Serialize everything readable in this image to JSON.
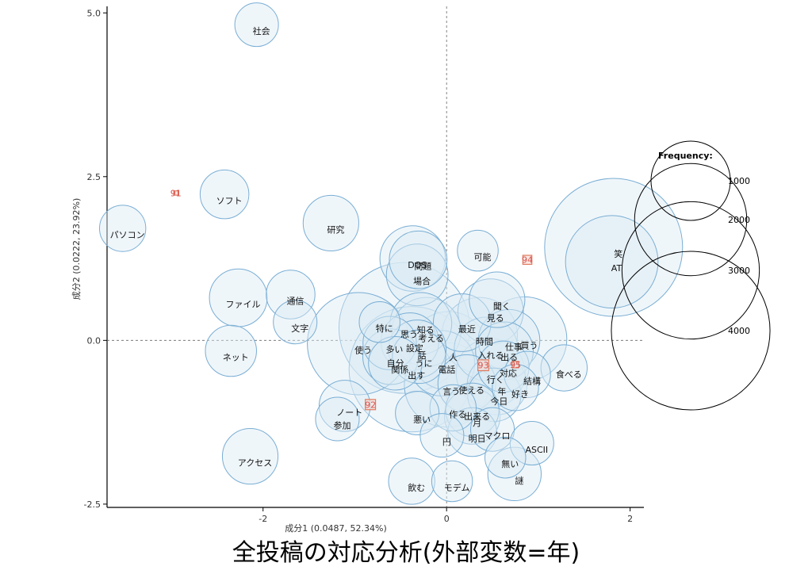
{
  "chart_data": {
    "type": "scatter",
    "xlabel": "成分1 (0.0487, 52.34%)",
    "ylabel": "成分2 (0.0222, 23.92%)",
    "xlim": [
      -3.7,
      2.15
    ],
    "ylim": [
      -2.55,
      5.1
    ],
    "xticks": [
      -2,
      0,
      2
    ],
    "xtick_labels": [
      "-2",
      "0",
      "2"
    ],
    "yticks": [
      -2.5,
      0.0,
      2.5,
      5.0
    ],
    "ytick_labels": [
      "-2.5",
      "0.0",
      "2.5",
      "5.0"
    ],
    "grid": false,
    "reference_lines": {
      "x": 0,
      "y": 0
    },
    "legend": {
      "title": "Frequency:",
      "position": "right",
      "entries": [
        {
          "label": "1000",
          "value": 1000
        },
        {
          "label": "2000",
          "value": 2000
        },
        {
          "label": "3000",
          "value": 3000
        },
        {
          "label": "4000",
          "value": 4000
        }
      ]
    },
    "colors": {
      "word_fill": "#dceaf5",
      "word_stroke": "#7aaed4",
      "year_fill": "#f9d9cf",
      "year_stroke": "#e07b5f",
      "year_text": "#d9534f"
    },
    "words": [
      {
        "label": "社会",
        "x": -2.07,
        "y": 4.82,
        "freq": 400
      },
      {
        "label": "ソフト",
        "x": -2.42,
        "y": 2.23,
        "freq": 500
      },
      {
        "label": "パソコン",
        "x": -3.53,
        "y": 1.71,
        "freq": 450
      },
      {
        "label": "研究",
        "x": -1.26,
        "y": 1.79,
        "freq": 650
      },
      {
        "label": "DOS",
        "x": -0.37,
        "y": 1.25,
        "freq": 900
      },
      {
        "label": "問題",
        "x": -0.31,
        "y": 1.23,
        "freq": 700
      },
      {
        "label": "場合",
        "x": -0.32,
        "y": 1.0,
        "freq": 800
      },
      {
        "label": "可能",
        "x": 0.34,
        "y": 1.37,
        "freq": 350
      },
      {
        "label": "笑",
        "x": 1.82,
        "y": 1.42,
        "freq": 4000
      },
      {
        "label": "AT",
        "x": 1.8,
        "y": 1.2,
        "freq": 1800
      },
      {
        "label": "ファイル",
        "x": -2.27,
        "y": 0.65,
        "freq": 700
      },
      {
        "label": "通信",
        "x": -1.7,
        "y": 0.7,
        "freq": 500
      },
      {
        "label": "聞く",
        "x": 0.55,
        "y": 0.62,
        "freq": 650
      },
      {
        "label": "見る",
        "x": 0.48,
        "y": 0.44,
        "freq": 900
      },
      {
        "label": "文字",
        "x": -1.65,
        "y": 0.28,
        "freq": 400
      },
      {
        "label": "最近",
        "x": 0.17,
        "y": 0.27,
        "freq": 700
      },
      {
        "label": "知る",
        "x": -0.28,
        "y": 0.26,
        "freq": 800
      },
      {
        "label": "思う",
        "x": -0.46,
        "y": 0.19,
        "freq": 3600
      },
      {
        "label": "特に",
        "x": -0.73,
        "y": 0.28,
        "freq": 350
      },
      {
        "label": "考える",
        "x": -0.22,
        "y": 0.13,
        "freq": 1000
      },
      {
        "label": "使う",
        "x": -0.96,
        "y": -0.05,
        "freq": 2200
      },
      {
        "label": "多い",
        "x": -0.62,
        "y": -0.04,
        "freq": 600
      },
      {
        "label": "設定",
        "x": -0.4,
        "y": -0.02,
        "freq": 700
      },
      {
        "label": "時間",
        "x": 0.36,
        "y": 0.08,
        "freq": 1200
      },
      {
        "label": "仕事",
        "x": 0.68,
        "y": 0.0,
        "freq": 800
      },
      {
        "label": "買う",
        "x": 0.85,
        "y": 0.02,
        "freq": 1500
      },
      {
        "label": "ネット",
        "x": -2.35,
        "y": -0.16,
        "freq": 550
      },
      {
        "label": "話",
        "x": -0.32,
        "y": -0.13,
        "freq": 700
      },
      {
        "label": "人",
        "x": 0.02,
        "y": -0.16,
        "freq": 1300
      },
      {
        "label": "入れる",
        "x": 0.43,
        "y": -0.13,
        "freq": 850
      },
      {
        "label": "出る",
        "x": 0.63,
        "y": -0.16,
        "freq": 700
      },
      {
        "label": "自分",
        "x": -0.61,
        "y": -0.25,
        "freq": 650
      },
      {
        "label": "うに",
        "x": -0.3,
        "y": -0.25,
        "freq": 600
      },
      {
        "label": "関係",
        "x": -0.56,
        "y": -0.35,
        "freq": 600
      },
      {
        "label": "電話",
        "x": -0.05,
        "y": -0.35,
        "freq": 900
      },
      {
        "label": "出す",
        "x": -0.38,
        "y": -0.44,
        "freq": 3300
      },
      {
        "label": "食べる",
        "x": 1.28,
        "y": -0.42,
        "freq": 450
      },
      {
        "label": "対応",
        "x": 0.62,
        "y": -0.4,
        "freq": 550
      },
      {
        "label": "行く",
        "x": 0.48,
        "y": -0.5,
        "freq": 1000
      },
      {
        "label": "結構",
        "x": 0.88,
        "y": -0.52,
        "freq": 450
      },
      {
        "label": "言う",
        "x": 0.0,
        "y": -0.68,
        "freq": 1500
      },
      {
        "label": "使える",
        "x": 0.22,
        "y": -0.66,
        "freq": 700
      },
      {
        "label": "年",
        "x": 0.55,
        "y": -0.68,
        "freq": 750
      },
      {
        "label": "好き",
        "x": 0.75,
        "y": -0.72,
        "freq": 450
      },
      {
        "label": "今日",
        "x": 0.52,
        "y": -0.83,
        "freq": 600
      },
      {
        "label": "ノート",
        "x": -1.11,
        "y": -1.0,
        "freq": 550
      },
      {
        "label": "作る",
        "x": 0.07,
        "y": -1.03,
        "freq": 450
      },
      {
        "label": "出来る",
        "x": 0.28,
        "y": -1.06,
        "freq": 600
      },
      {
        "label": "悪い",
        "x": -0.32,
        "y": -1.11,
        "freq": 400
      },
      {
        "label": "月",
        "x": 0.28,
        "y": -1.16,
        "freq": 650
      },
      {
        "label": "参加",
        "x": -1.19,
        "y": -1.2,
        "freq": 400
      },
      {
        "label": "マクロ",
        "x": 0.5,
        "y": -1.36,
        "freq": 400
      },
      {
        "label": "ASCII",
        "x": 0.93,
        "y": -1.57,
        "freq": 400
      },
      {
        "label": "円",
        "x": -0.05,
        "y": -1.45,
        "freq": 400
      },
      {
        "label": "明日",
        "x": 0.28,
        "y": -1.4,
        "freq": 500
      },
      {
        "label": "アクセス",
        "x": -2.14,
        "y": -1.77,
        "freq": 650
      },
      {
        "label": "無い",
        "x": 0.64,
        "y": -1.79,
        "freq": 350
      },
      {
        "label": "謎",
        "x": 0.74,
        "y": -2.04,
        "freq": 600
      },
      {
        "label": "飲む",
        "x": -0.38,
        "y": -2.15,
        "freq": 450
      },
      {
        "label": "モデム",
        "x": 0.06,
        "y": -2.15,
        "freq": 350
      }
    ],
    "years": [
      {
        "label": "91",
        "x": -2.95,
        "y": 2.25,
        "freq": 200
      },
      {
        "label": "92",
        "x": -0.83,
        "y": -0.98,
        "freq": 1150
      },
      {
        "label": "93",
        "x": 0.4,
        "y": -0.38,
        "freq": 1300
      },
      {
        "label": "94",
        "x": 0.88,
        "y": 1.23,
        "freq": 900
      },
      {
        "label": "95",
        "x": 0.75,
        "y": -0.37,
        "freq": 450
      }
    ]
  },
  "caption": "全投稿の対応分析(外部変数=年)"
}
